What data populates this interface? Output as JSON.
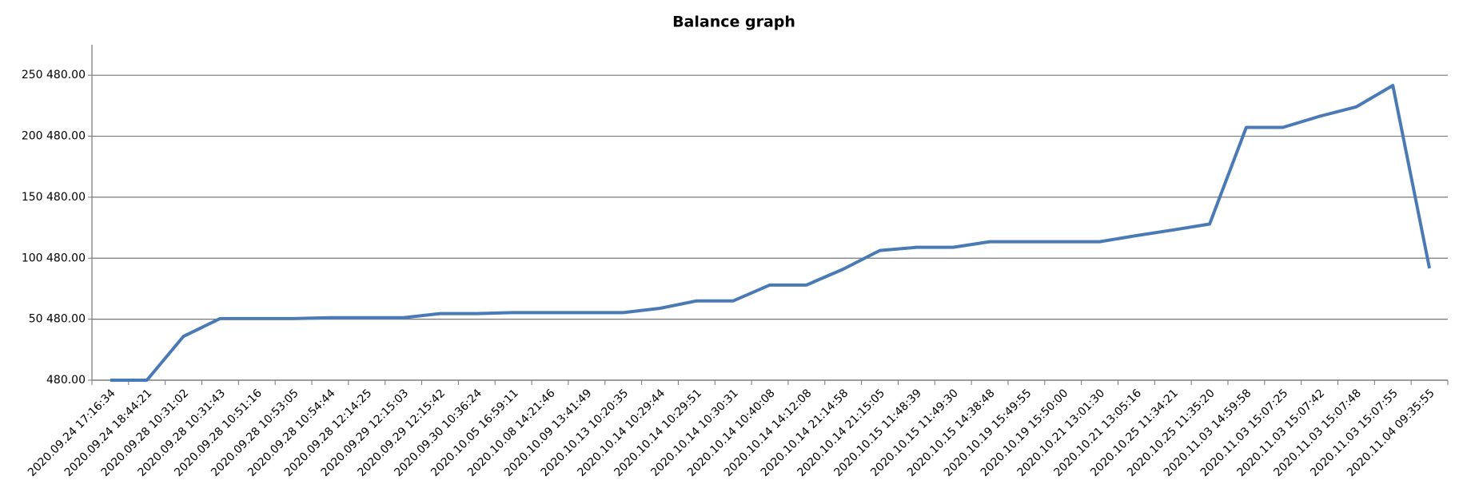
{
  "chart_data": {
    "type": "line",
    "title": "Balance graph",
    "categories": [
      "2020.09.24 17:16:34",
      "2020.09.24 18:44:21",
      "2020.09.28 10:31:02",
      "2020.09.28 10:31:43",
      "2020.09.28 10:51:16",
      "2020.09.28 10:53:05",
      "2020.09.28 10:54:44",
      "2020.09.28 12:14:25",
      "2020.09.29 12:15:03",
      "2020.09.29 12:15:42",
      "2020.09.30 10:36:24",
      "2020.10.05 16:59:11",
      "2020.10.08 14:21:46",
      "2020.10.09 13:41:49",
      "2020.10.13 10:20:35",
      "2020.10.14 10:29:44",
      "2020.10.14 10:29:51",
      "2020.10.14 10:30:31",
      "2020.10.14 10:40:08",
      "2020.10.14 14:12:08",
      "2020.10.14 21:14:58",
      "2020.10.14 21:15:05",
      "2020.10.15 11:48:39",
      "2020.10.15 11:49:30",
      "2020.10.15 14:38:48",
      "2020.10.19 15:49:55",
      "2020.10.19 15:50:00",
      "2020.10.21 13:01:30",
      "2020.10.21 13:05:16",
      "2020.10.25 11:34:21",
      "2020.10.25 11:35:20",
      "2020.11.03 14:59:58",
      "2020.11.03 15:07:25",
      "2020.11.03 15:07:42",
      "2020.11.03 15:07:48",
      "2020.11.03 15:07:55",
      "2020.11.04 09:35:55"
    ],
    "values": [
      480,
      480,
      36480,
      51000,
      51000,
      51000,
      51700,
      51700,
      51700,
      55100,
      55100,
      55900,
      55900,
      55900,
      55900,
      59400,
      65500,
      65500,
      78500,
      78500,
      91500,
      106800,
      109400,
      109400,
      114000,
      114000,
      114000,
      114000,
      119000,
      123600,
      128500,
      207700,
      207700,
      216800,
      224500,
      242100,
      92200
    ],
    "color": "#4a7ab5",
    "ylim": [
      480,
      275480
    ],
    "yticks": [
      {
        "value": 480,
        "label": "480.00"
      },
      {
        "value": 50480,
        "label": "50 480.00"
      },
      {
        "value": 100480,
        "label": "100 480.00"
      },
      {
        "value": 150480,
        "label": "150 480.00"
      },
      {
        "value": 200480,
        "label": "200 480.00"
      },
      {
        "value": 250480,
        "label": "250 480.00"
      }
    ],
    "grid": true
  }
}
